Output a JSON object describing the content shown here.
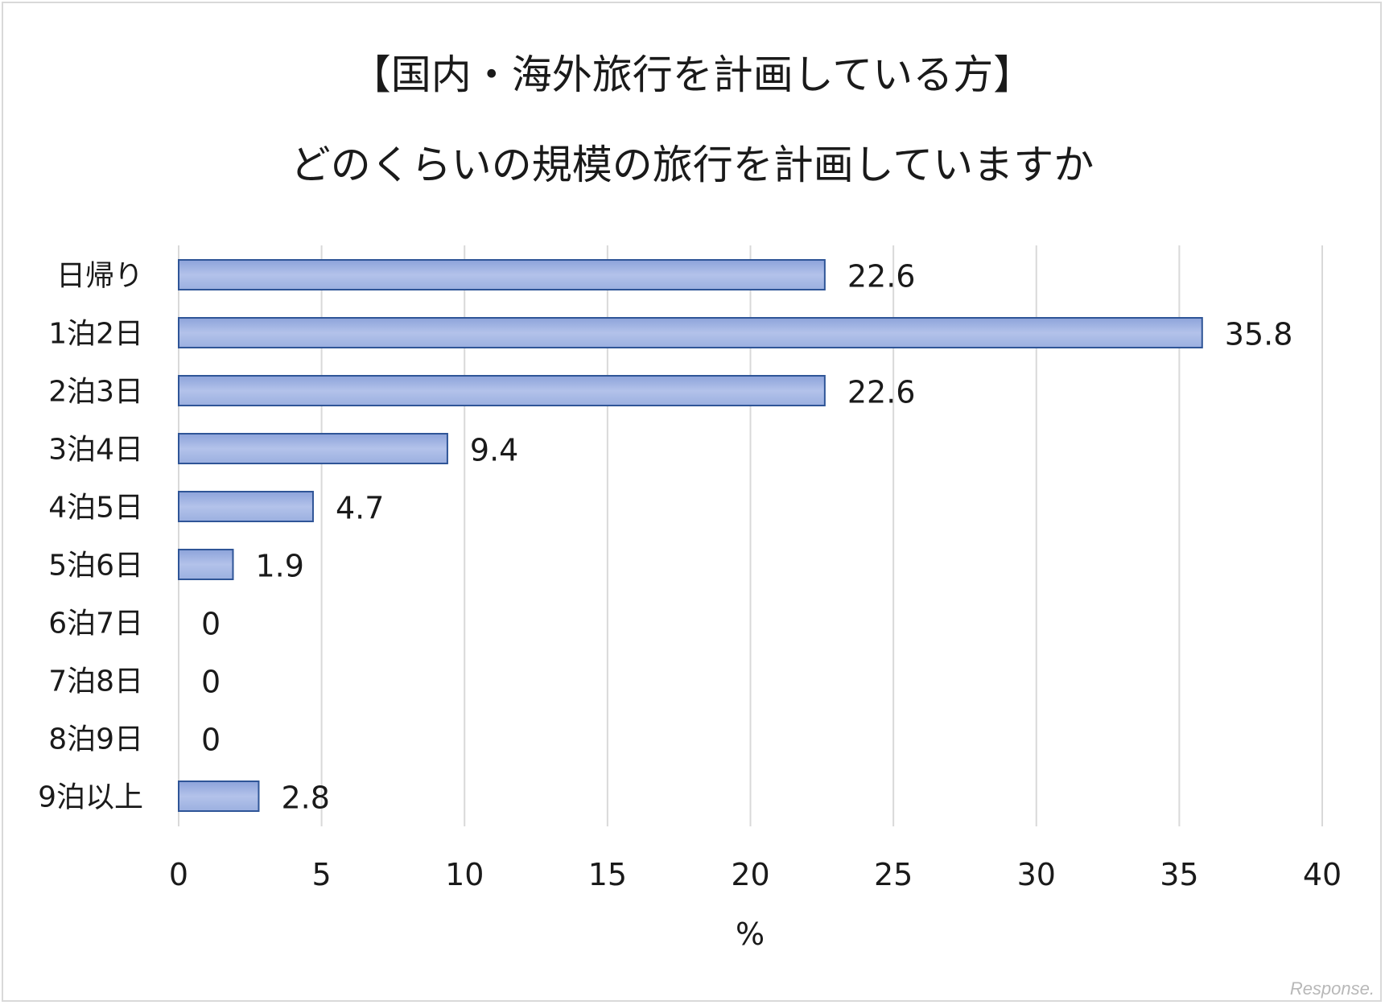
{
  "chart_data": {
    "type": "bar",
    "orientation": "horizontal",
    "title": "【国内・海外旅行を計画している方】",
    "subtitle": "どのくらいの規模の旅行を計画していますか",
    "categories": [
      "日帰り",
      "1泊2日",
      "2泊3日",
      "3泊4日",
      "4泊5日",
      "5泊6日",
      "6泊7日",
      "7泊8日",
      "8泊9日",
      "9泊以上"
    ],
    "values": [
      22.6,
      35.8,
      22.6,
      9.4,
      4.7,
      1.9,
      0,
      0,
      0,
      2.8
    ],
    "xlabel": "%",
    "xlim": [
      0,
      40
    ],
    "xticks": [
      0,
      5,
      10,
      15,
      20,
      25,
      30,
      35,
      40
    ],
    "grid": "vertical",
    "legend": "none",
    "bar_color": "#a9b9e3",
    "bar_border_color": "#2f5597"
  },
  "watermark": "Response."
}
